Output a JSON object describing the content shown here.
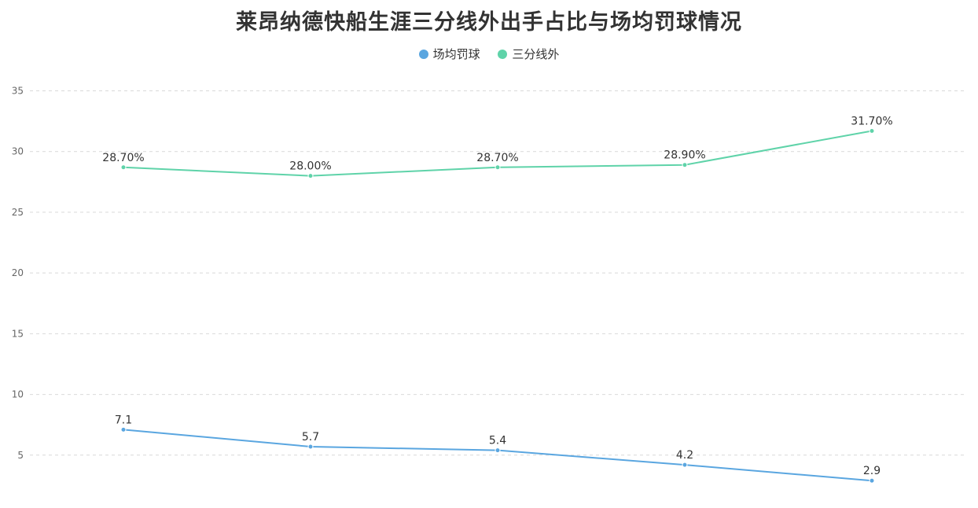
{
  "chart_data": {
    "type": "line",
    "title": "莱昂纳德快船生涯三分线外出手占比与场均罚球情况",
    "xlabel": "",
    "ylabel": "",
    "x": [
      "",
      "",
      "",
      "",
      ""
    ],
    "ylim": [
      0,
      35
    ],
    "yticks": [
      5,
      10,
      15,
      20,
      25,
      30,
      35
    ],
    "grid": true,
    "legend_position": "top",
    "series": [
      {
        "name": "场均罚球",
        "color": "#5aa6e0",
        "values": [
          7.1,
          5.7,
          5.4,
          4.2,
          2.9
        ],
        "labels": [
          "7.1",
          "5.7",
          "5.4",
          "4.2",
          "2.9"
        ]
      },
      {
        "name": "三分线外",
        "color": "#5fd3a9",
        "values": [
          28.7,
          28.0,
          28.7,
          28.9,
          31.7
        ],
        "labels": [
          "28.70%",
          "28.00%",
          "28.70%",
          "28.90%",
          "31.70%"
        ]
      }
    ]
  }
}
